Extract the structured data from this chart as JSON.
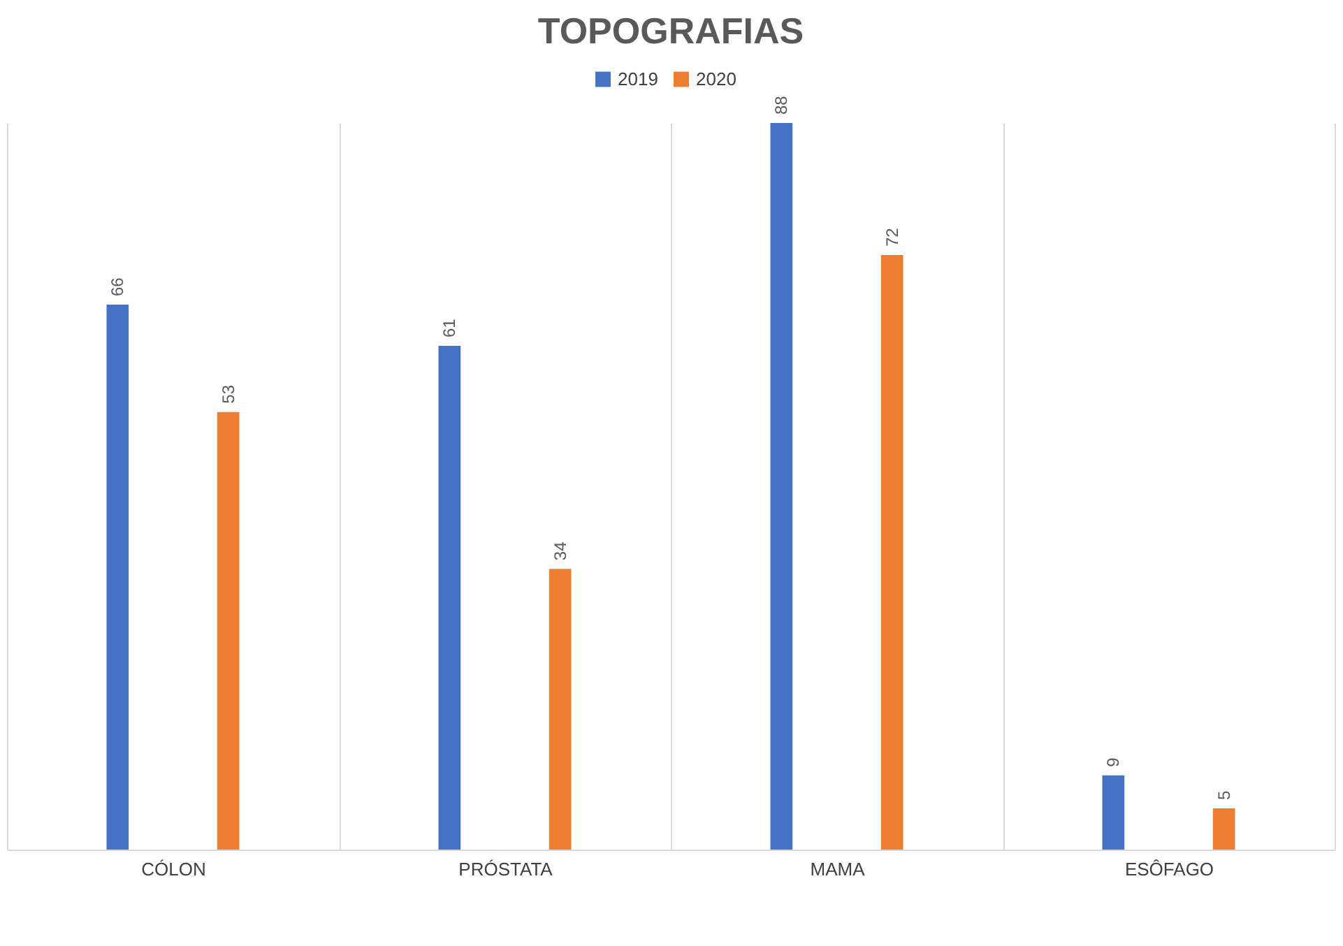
{
  "chart_data": {
    "type": "bar",
    "title": "TOPOGRAFIAS",
    "categories": [
      "CÓLON",
      "PRÓSTATA",
      "MAMA",
      "ESÔFAGO"
    ],
    "series": [
      {
        "name": "2019",
        "color": "#4472c4",
        "values": [
          66,
          61,
          88,
          9
        ]
      },
      {
        "name": "2020",
        "color": "#ed7d31",
        "values": [
          53,
          34,
          72,
          5
        ]
      }
    ],
    "tick_labels": "x",
    "data_labels": true,
    "grid": "x",
    "legend": "top"
  }
}
